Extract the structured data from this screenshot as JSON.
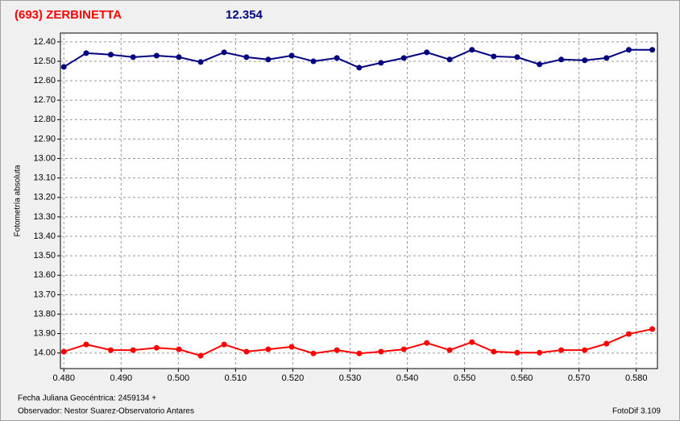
{
  "chart_data": {
    "type": "line",
    "title": "(693) ZERBINETTA",
    "subtitle": "12.354",
    "ylabel": "Fotometría absoluta",
    "xlabel": "Fecha Juliana Geocéntrica: 2459134 +",
    "observer": "Observador: Nestor Suarez-Observatorio Antares",
    "software": "FotoDif 3.109",
    "x": [
      0.48,
      0.4839,
      0.4882,
      0.4921,
      0.4962,
      0.5001,
      0.5039,
      0.508,
      0.5119,
      0.5157,
      0.5198,
      0.5236,
      0.5277,
      0.5316,
      0.5354,
      0.5394,
      0.5434,
      0.5474,
      0.5513,
      0.5551,
      0.5592,
      0.5631,
      0.5669,
      0.571,
      0.5748,
      0.5787,
      0.5828
    ],
    "series": [
      {
        "color": "#000080",
        "values": [
          12.529,
          12.458,
          12.466,
          12.479,
          12.471,
          12.479,
          12.504,
          12.454,
          12.479,
          12.491,
          12.471,
          12.5,
          12.483,
          12.533,
          12.508,
          12.483,
          12.454,
          12.491,
          12.441,
          12.475,
          12.479,
          12.516,
          12.491,
          12.495,
          12.483,
          12.441,
          12.441
        ]
      },
      {
        "color": "#ff0000",
        "values": [
          13.993,
          13.956,
          13.985,
          13.985,
          13.973,
          13.981,
          14.014,
          13.956,
          13.993,
          13.981,
          13.968,
          14.002,
          13.985,
          14.002,
          13.993,
          13.981,
          13.948,
          13.985,
          13.944,
          13.993,
          13.998,
          13.998,
          13.985,
          13.985,
          13.952,
          13.902,
          13.877
        ]
      }
    ],
    "xlim": [
      0.4794,
      0.5837
    ],
    "ylim": [
      12.355,
      14.08
    ],
    "y_inverted": true,
    "grid": true,
    "xticks": [
      {
        "value": 0.48,
        "label": "0.480"
      },
      {
        "value": 0.49,
        "label": "0.490"
      },
      {
        "value": 0.5,
        "label": "0.500"
      },
      {
        "value": 0.51,
        "label": "0.510"
      },
      {
        "value": 0.52,
        "label": "0.520"
      },
      {
        "value": 0.53,
        "label": "0.530"
      },
      {
        "value": 0.54,
        "label": "0.540"
      },
      {
        "value": 0.55,
        "label": "0.550"
      },
      {
        "value": 0.56,
        "label": "0.560"
      },
      {
        "value": 0.57,
        "label": "0.570"
      },
      {
        "value": 0.58,
        "label": "0.580"
      }
    ],
    "yticks": [
      {
        "value": 12.4,
        "label": "12.40"
      },
      {
        "value": 12.5,
        "label": "12.50"
      },
      {
        "value": 12.6,
        "label": "12.60"
      },
      {
        "value": 12.7,
        "label": "12.70"
      },
      {
        "value": 12.8,
        "label": "12.80"
      },
      {
        "value": 12.9,
        "label": "12.90"
      },
      {
        "value": 13.0,
        "label": "13.00"
      },
      {
        "value": 13.1,
        "label": "13.10"
      },
      {
        "value": 13.2,
        "label": "13.20"
      },
      {
        "value": 13.3,
        "label": "13.30"
      },
      {
        "value": 13.4,
        "label": "13.40"
      },
      {
        "value": 13.5,
        "label": "13.50"
      },
      {
        "value": 13.6,
        "label": "13.60"
      },
      {
        "value": 13.7,
        "label": "13.70"
      },
      {
        "value": 13.8,
        "label": "13.80"
      },
      {
        "value": 13.9,
        "label": "13.90"
      },
      {
        "value": 14.0,
        "label": "14.00"
      }
    ]
  }
}
